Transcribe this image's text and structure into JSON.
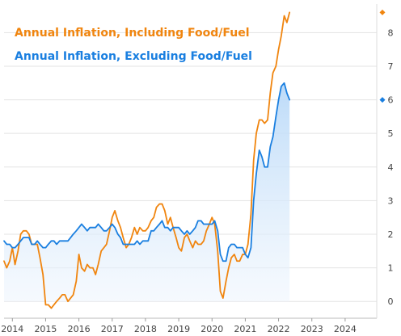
{
  "chart_data": {
    "type": "line",
    "x_ticks": [
      "2014",
      "2015",
      "2016",
      "2017",
      "2018",
      "2019",
      "2020",
      "2021",
      "2022",
      "2023",
      "2024"
    ],
    "y_ticks": [
      "0",
      "1",
      "2",
      "3",
      "4",
      "5",
      "6",
      "7",
      "8"
    ],
    "xlim": [
      2013.75,
      2024.95
    ],
    "ylim": [
      -0.5,
      8.85
    ],
    "y_axis_side": "right",
    "grid": "horizontal",
    "legend_position": "top-left",
    "series": [
      {
        "name": "Annual Inflation, Including Food/Fuel",
        "color": "#f0850f",
        "x": [
          2013.75,
          2013.83,
          2013.92,
          2014.0,
          2014.08,
          2014.17,
          2014.25,
          2014.33,
          2014.42,
          2014.5,
          2014.58,
          2014.67,
          2014.75,
          2014.83,
          2014.92,
          2015.0,
          2015.08,
          2015.17,
          2015.25,
          2015.33,
          2015.42,
          2015.5,
          2015.58,
          2015.67,
          2015.75,
          2015.83,
          2015.92,
          2016.0,
          2016.08,
          2016.17,
          2016.25,
          2016.33,
          2016.42,
          2016.5,
          2016.58,
          2016.67,
          2016.75,
          2016.83,
          2016.92,
          2017.0,
          2017.08,
          2017.17,
          2017.25,
          2017.33,
          2017.42,
          2017.5,
          2017.58,
          2017.67,
          2017.75,
          2017.83,
          2017.92,
          2018.0,
          2018.08,
          2018.17,
          2018.25,
          2018.33,
          2018.42,
          2018.5,
          2018.58,
          2018.67,
          2018.75,
          2018.83,
          2018.92,
          2019.0,
          2019.08,
          2019.17,
          2019.25,
          2019.33,
          2019.42,
          2019.5,
          2019.58,
          2019.67,
          2019.75,
          2019.83,
          2019.92,
          2020.0,
          2020.08,
          2020.17,
          2020.25,
          2020.33,
          2020.42,
          2020.5,
          2020.58,
          2020.67,
          2020.75,
          2020.83,
          2020.92,
          2021.0,
          2021.08,
          2021.17,
          2021.25,
          2021.33,
          2021.42,
          2021.5,
          2021.58,
          2021.67,
          2021.75,
          2021.83,
          2021.92,
          2022.0,
          2022.08,
          2022.17,
          2022.25,
          2022.33
        ],
        "values": [
          1.2,
          1.0,
          1.2,
          1.6,
          1.1,
          1.5,
          2.0,
          2.1,
          2.1,
          2.0,
          1.7,
          1.7,
          1.7,
          1.3,
          0.8,
          -0.1,
          -0.1,
          -0.2,
          -0.1,
          0.0,
          0.1,
          0.2,
          0.2,
          0.0,
          0.1,
          0.2,
          0.6,
          1.4,
          1.0,
          0.9,
          1.1,
          1.0,
          1.0,
          0.8,
          1.1,
          1.5,
          1.6,
          1.7,
          2.1,
          2.5,
          2.7,
          2.4,
          2.2,
          1.9,
          1.6,
          1.7,
          1.9,
          2.2,
          2.0,
          2.2,
          2.1,
          2.1,
          2.2,
          2.4,
          2.5,
          2.8,
          2.9,
          2.9,
          2.7,
          2.3,
          2.5,
          2.2,
          1.9,
          1.6,
          1.5,
          1.9,
          2.0,
          1.8,
          1.6,
          1.8,
          1.7,
          1.7,
          1.8,
          2.1,
          2.3,
          2.5,
          2.3,
          1.5,
          0.3,
          0.1,
          0.6,
          1.0,
          1.3,
          1.4,
          1.2,
          1.2,
          1.4,
          1.4,
          1.7,
          2.6,
          4.2,
          5.0,
          5.4,
          5.4,
          5.3,
          5.4,
          6.2,
          6.8,
          7.0,
          7.5,
          7.9,
          8.5,
          8.3,
          8.6
        ]
      },
      {
        "name": "Annual Inflation, Excluding Food/Fuel",
        "color": "#1a7fe0",
        "x": [
          2013.75,
          2013.83,
          2013.92,
          2014.0,
          2014.08,
          2014.17,
          2014.25,
          2014.33,
          2014.42,
          2014.5,
          2014.58,
          2014.67,
          2014.75,
          2014.83,
          2014.92,
          2015.0,
          2015.08,
          2015.17,
          2015.25,
          2015.33,
          2015.42,
          2015.5,
          2015.58,
          2015.67,
          2015.75,
          2015.83,
          2015.92,
          2016.0,
          2016.08,
          2016.17,
          2016.25,
          2016.33,
          2016.42,
          2016.5,
          2016.58,
          2016.67,
          2016.75,
          2016.83,
          2016.92,
          2017.0,
          2017.08,
          2017.17,
          2017.25,
          2017.33,
          2017.42,
          2017.5,
          2017.58,
          2017.67,
          2017.75,
          2017.83,
          2017.92,
          2018.0,
          2018.08,
          2018.17,
          2018.25,
          2018.33,
          2018.42,
          2018.5,
          2018.58,
          2018.67,
          2018.75,
          2018.83,
          2018.92,
          2019.0,
          2019.08,
          2019.17,
          2019.25,
          2019.33,
          2019.42,
          2019.5,
          2019.58,
          2019.67,
          2019.75,
          2019.83,
          2019.92,
          2020.0,
          2020.08,
          2020.17,
          2020.25,
          2020.33,
          2020.42,
          2020.5,
          2020.58,
          2020.67,
          2020.75,
          2020.83,
          2020.92,
          2021.0,
          2021.08,
          2021.17,
          2021.25,
          2021.33,
          2021.42,
          2021.5,
          2021.58,
          2021.67,
          2021.75,
          2021.83,
          2021.92,
          2022.0,
          2022.08,
          2022.17,
          2022.25,
          2022.33
        ],
        "values": [
          1.8,
          1.7,
          1.7,
          1.6,
          1.6,
          1.7,
          1.8,
          1.9,
          1.9,
          1.9,
          1.7,
          1.7,
          1.8,
          1.7,
          1.6,
          1.6,
          1.7,
          1.8,
          1.8,
          1.7,
          1.8,
          1.8,
          1.8,
          1.8,
          1.9,
          2.0,
          2.1,
          2.2,
          2.3,
          2.2,
          2.1,
          2.2,
          2.2,
          2.2,
          2.3,
          2.2,
          2.1,
          2.1,
          2.2,
          2.3,
          2.2,
          2.0,
          1.9,
          1.7,
          1.7,
          1.7,
          1.7,
          1.7,
          1.8,
          1.7,
          1.8,
          1.8,
          1.8,
          2.1,
          2.1,
          2.2,
          2.3,
          2.4,
          2.2,
          2.2,
          2.1,
          2.2,
          2.2,
          2.2,
          2.1,
          2.0,
          2.1,
          2.0,
          2.1,
          2.2,
          2.4,
          2.4,
          2.3,
          2.3,
          2.3,
          2.3,
          2.4,
          2.1,
          1.4,
          1.2,
          1.2,
          1.6,
          1.7,
          1.7,
          1.6,
          1.6,
          1.6,
          1.4,
          1.3,
          1.6,
          3.0,
          3.8,
          4.5,
          4.3,
          4.0,
          4.0,
          4.6,
          4.9,
          5.5,
          6.0,
          6.4,
          6.5,
          6.2,
          6.0
        ]
      }
    ]
  }
}
